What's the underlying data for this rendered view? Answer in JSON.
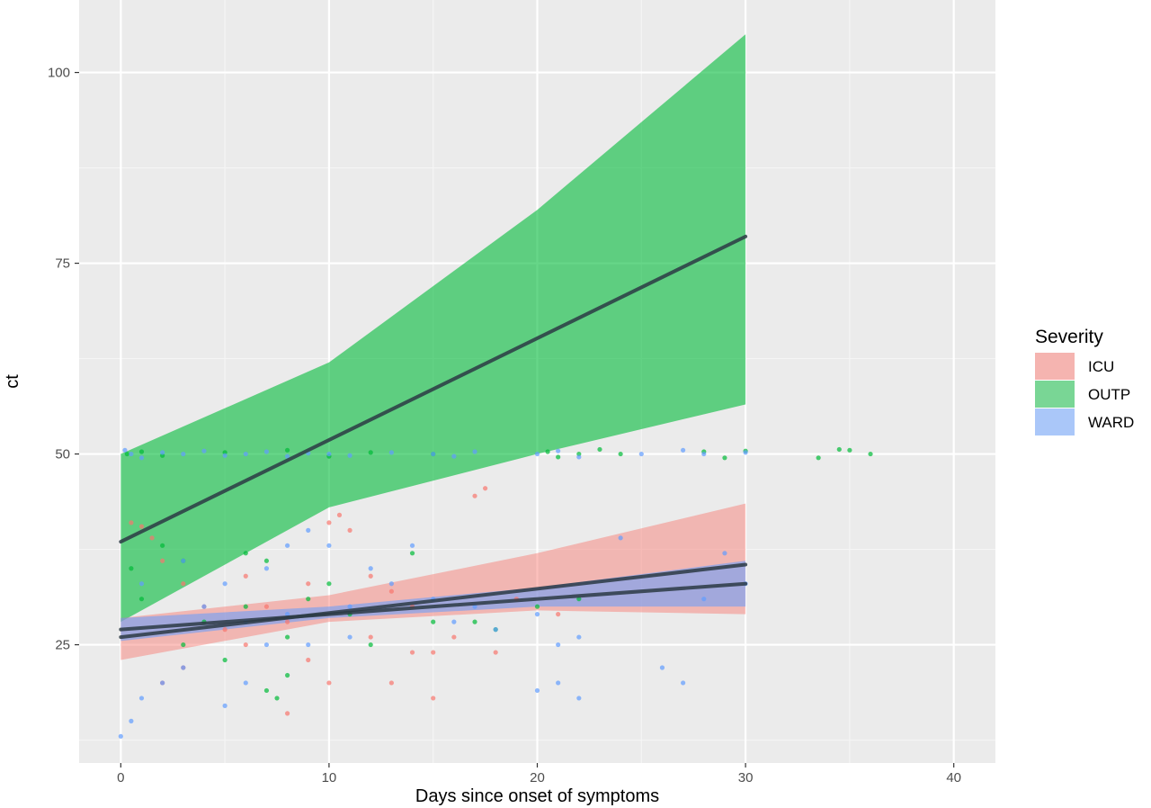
{
  "chart_data": {
    "type": "scatter",
    "xlabel": "Days since onset of symptoms",
    "ylabel": "ct",
    "xlim": [
      -2,
      42
    ],
    "ylim": [
      9.5,
      109.5
    ],
    "x_ticks": [
      0,
      10,
      20,
      30,
      40
    ],
    "y_ticks": [
      25,
      50,
      75,
      100
    ],
    "x_tick_labels": [
      "0",
      "10",
      "20",
      "30",
      "40"
    ],
    "y_tick_labels": [
      "25",
      "50",
      "75",
      "100"
    ],
    "grid": true,
    "legend": {
      "title": "Severity",
      "position": "right"
    },
    "series": [
      {
        "name": "ICU",
        "color": "#F8766D",
        "fit_line": {
          "x": [
            0,
            30
          ],
          "y": [
            26,
            35.5
          ]
        },
        "ribbon": {
          "x": [
            0,
            10,
            20,
            30
          ],
          "lower": [
            23,
            28,
            29.5,
            29
          ],
          "upper": [
            28.5,
            31.5,
            37,
            43.5
          ]
        },
        "points": [
          [
            0.5,
            41
          ],
          [
            1,
            40.5
          ],
          [
            1.5,
            39
          ],
          [
            2,
            36
          ],
          [
            3,
            33
          ],
          [
            4,
            30
          ],
          [
            5,
            27
          ],
          [
            6,
            25
          ],
          [
            7,
            30
          ],
          [
            8,
            28
          ],
          [
            9,
            33
          ],
          [
            10,
            41
          ],
          [
            10.5,
            42
          ],
          [
            11,
            40
          ],
          [
            12,
            34
          ],
          [
            13,
            32
          ],
          [
            14,
            30
          ],
          [
            15,
            24
          ],
          [
            16,
            26
          ],
          [
            17,
            44.5
          ],
          [
            17.5,
            45.5
          ],
          [
            18,
            24
          ],
          [
            2,
            20
          ],
          [
            3,
            22
          ],
          [
            8,
            16
          ],
          [
            10,
            20
          ],
          [
            14,
            24
          ],
          [
            15,
            18
          ],
          [
            19,
            31
          ],
          [
            21,
            29
          ],
          [
            13,
            20
          ],
          [
            6,
            34
          ],
          [
            12,
            26
          ],
          [
            9,
            23
          ]
        ]
      },
      {
        "name": "OUTP",
        "color": "#00BA38",
        "fit_line": {
          "x": [
            0,
            30
          ],
          "y": [
            38.5,
            78.5
          ]
        },
        "ribbon": {
          "x": [
            0,
            10,
            20,
            30
          ],
          "lower": [
            28,
            43,
            50,
            56.5
          ],
          "upper": [
            50,
            62,
            82,
            105
          ]
        },
        "points": [
          [
            0.3,
            50
          ],
          [
            1,
            50.3
          ],
          [
            2,
            49.8
          ],
          [
            5,
            50.2
          ],
          [
            8,
            50.5
          ],
          [
            10,
            49.7
          ],
          [
            12,
            50.2
          ],
          [
            15,
            50
          ],
          [
            20.5,
            50.3
          ],
          [
            21,
            49.6
          ],
          [
            22,
            50
          ],
          [
            23,
            50.6
          ],
          [
            24,
            50
          ],
          [
            28,
            50.3
          ],
          [
            29,
            49.5
          ],
          [
            30,
            50.4
          ],
          [
            33.5,
            49.5
          ],
          [
            34.5,
            50.6
          ],
          [
            35,
            50.5
          ],
          [
            36,
            50
          ],
          [
            0.5,
            35
          ],
          [
            1,
            31
          ],
          [
            2,
            38
          ],
          [
            3,
            36
          ],
          [
            4,
            28
          ],
          [
            5,
            23
          ],
          [
            6,
            30
          ],
          [
            7,
            19
          ],
          [
            8,
            21
          ],
          [
            7.5,
            18
          ],
          [
            8,
            26
          ],
          [
            9,
            31
          ],
          [
            10,
            33
          ],
          [
            11,
            29
          ],
          [
            12,
            25
          ],
          [
            14,
            37
          ],
          [
            15,
            28
          ],
          [
            17,
            28
          ],
          [
            18,
            27
          ],
          [
            20,
            30
          ],
          [
            22,
            31
          ],
          [
            3,
            25
          ],
          [
            6,
            37
          ],
          [
            7,
            36
          ]
        ]
      },
      {
        "name": "WARD",
        "color": "#619CFF",
        "fit_line": {
          "x": [
            0,
            30
          ],
          "y": [
            27,
            33
          ]
        },
        "ribbon": {
          "x": [
            0,
            10,
            20,
            30
          ],
          "lower": [
            25.5,
            28.5,
            30,
            30
          ],
          "upper": [
            28.5,
            30,
            32.5,
            36
          ]
        },
        "points": [
          [
            0.2,
            50.5
          ],
          [
            0.5,
            50
          ],
          [
            1,
            49.5
          ],
          [
            2,
            50.2
          ],
          [
            3,
            50
          ],
          [
            4,
            50.4
          ],
          [
            5,
            49.8
          ],
          [
            6,
            50
          ],
          [
            7,
            50.3
          ],
          [
            8,
            49.7
          ],
          [
            9,
            50.1
          ],
          [
            10,
            50
          ],
          [
            11,
            49.8
          ],
          [
            13,
            50.2
          ],
          [
            15,
            50
          ],
          [
            16,
            49.7
          ],
          [
            17,
            50.3
          ],
          [
            20,
            50
          ],
          [
            21,
            50.4
          ],
          [
            22,
            49.6
          ],
          [
            25,
            50
          ],
          [
            27,
            50.5
          ],
          [
            28,
            50
          ],
          [
            30,
            50.2
          ],
          [
            0,
            13
          ],
          [
            0.5,
            15
          ],
          [
            1,
            18
          ],
          [
            2,
            20
          ],
          [
            3,
            22
          ],
          [
            4,
            30
          ],
          [
            5,
            33
          ],
          [
            6,
            28
          ],
          [
            7,
            35
          ],
          [
            8,
            38
          ],
          [
            9,
            40
          ],
          [
            10,
            38
          ],
          [
            11,
            30
          ],
          [
            12,
            35
          ],
          [
            13,
            33
          ],
          [
            14,
            38
          ],
          [
            15,
            31
          ],
          [
            16,
            28
          ],
          [
            17,
            30
          ],
          [
            18,
            27
          ],
          [
            20,
            29
          ],
          [
            21,
            25
          ],
          [
            22,
            26
          ],
          [
            20,
            19
          ],
          [
            21,
            20
          ],
          [
            22,
            18
          ],
          [
            24,
            39
          ],
          [
            26,
            22
          ],
          [
            27,
            20
          ],
          [
            28,
            31
          ],
          [
            29,
            37
          ],
          [
            30,
            33
          ],
          [
            9,
            25
          ],
          [
            8,
            29
          ],
          [
            6,
            20
          ],
          [
            3,
            36
          ],
          [
            1,
            33
          ],
          [
            5,
            17
          ],
          [
            7,
            25
          ],
          [
            11,
            26
          ]
        ]
      }
    ]
  }
}
